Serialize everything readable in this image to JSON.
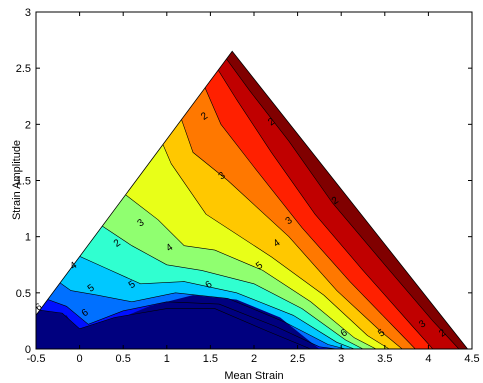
{
  "chart_data": {
    "type": "contour",
    "xlabel": "Mean Strain",
    "ylabel": "Strain Amplitude",
    "xlim": [
      -0.5,
      4.5
    ],
    "ylim": [
      0,
      3
    ],
    "x_ticks": [
      "-0.5",
      "0",
      "0.5",
      "1",
      "1.5",
      "2",
      "2.5",
      "3",
      "3.5",
      "4",
      "4.5"
    ],
    "y_ticks": [
      "0",
      "0.5",
      "1",
      "1.5",
      "2",
      "2.5",
      "3"
    ],
    "domain": {
      "shape": "triangle",
      "apex": [
        1.75,
        2.65
      ],
      "left_base": [
        -0.5,
        0.3
      ],
      "left_low": [
        -0.5,
        0.0
      ],
      "right_base": [
        4.45,
        0.0
      ]
    },
    "colormap": [
      "#00007f",
      "#0010ff",
      "#0070ff",
      "#00c8ff",
      "#30ffd0",
      "#90ff70",
      "#e8ff18",
      "#ffc800",
      "#ff7800",
      "#ff2000",
      "#c00000",
      "#800000"
    ],
    "contours": [
      {
        "level": 12,
        "value": "",
        "points": [
          [
            1.62,
            2.65
          ],
          [
            1.95,
            2.3
          ],
          [
            2.4,
            1.85
          ],
          [
            2.9,
            1.3
          ],
          [
            3.5,
            0.75
          ],
          [
            4.05,
            0.25
          ],
          [
            4.35,
            0.0
          ]
        ]
      },
      {
        "level": 11,
        "value": "2",
        "points": [
          [
            1.52,
            2.57
          ],
          [
            1.8,
            2.22
          ],
          [
            2.2,
            1.75
          ],
          [
            2.7,
            1.2
          ],
          [
            3.25,
            0.7
          ],
          [
            3.82,
            0.2
          ],
          [
            4.05,
            0.0
          ]
        ]
      },
      {
        "level": 10,
        "value": "",
        "points": [
          [
            1.38,
            2.43
          ],
          [
            1.62,
            2.0
          ],
          [
            2.0,
            1.62
          ],
          [
            2.55,
            1.08
          ],
          [
            3.1,
            0.6
          ],
          [
            3.6,
            0.2
          ],
          [
            3.85,
            0.0
          ]
        ]
      },
      {
        "level": 9,
        "value": "3",
        "points": [
          [
            1.12,
            2.15
          ],
          [
            1.3,
            1.75
          ],
          [
            1.7,
            1.5
          ],
          [
            2.4,
            1.0
          ],
          [
            2.95,
            0.52
          ],
          [
            3.45,
            0.16
          ],
          [
            3.7,
            0.0
          ]
        ]
      },
      {
        "level": 8,
        "value": "2",
        "points": [
          [
            0.9,
            1.92
          ],
          [
            1.05,
            1.65
          ],
          [
            1.45,
            1.2
          ],
          [
            2.2,
            0.82
          ],
          [
            2.8,
            0.48
          ],
          [
            3.3,
            0.12
          ],
          [
            3.55,
            0.0
          ]
        ]
      },
      {
        "level": 7,
        "value": "3",
        "points": [
          [
            0.45,
            1.42
          ],
          [
            0.9,
            1.15
          ],
          [
            1.2,
            0.92
          ],
          [
            1.55,
            0.88
          ],
          [
            2.1,
            0.7
          ],
          [
            2.65,
            0.42
          ],
          [
            3.15,
            0.1
          ],
          [
            3.4,
            0.0
          ]
        ]
      },
      {
        "level": 6,
        "value": "2",
        "points": [
          [
            0.15,
            1.15
          ],
          [
            0.6,
            0.92
          ],
          [
            1.0,
            0.75
          ],
          [
            1.4,
            0.7
          ],
          [
            2.0,
            0.58
          ],
          [
            2.55,
            0.36
          ],
          [
            3.05,
            0.08
          ],
          [
            3.25,
            0.0
          ]
        ]
      },
      {
        "level": 5,
        "value": "4",
        "points": [
          [
            -0.1,
            0.86
          ],
          [
            0.3,
            0.72
          ],
          [
            0.7,
            0.58
          ],
          [
            1.2,
            0.6
          ],
          [
            1.8,
            0.5
          ],
          [
            2.45,
            0.3
          ],
          [
            2.95,
            0.06
          ],
          [
            3.15,
            0.0
          ]
        ]
      },
      {
        "level": 4,
        "value": "5",
        "points": [
          [
            -0.28,
            0.62
          ],
          [
            -0.1,
            0.52
          ],
          [
            0.2,
            0.48
          ],
          [
            0.6,
            0.42
          ],
          [
            1.1,
            0.5
          ],
          [
            1.7,
            0.45
          ],
          [
            2.35,
            0.24
          ],
          [
            2.85,
            0.04
          ],
          [
            3.05,
            0.0
          ]
        ]
      },
      {
        "level": 3,
        "value": "6",
        "points": [
          [
            -0.4,
            0.45
          ],
          [
            -0.15,
            0.38
          ],
          [
            0.1,
            0.22
          ],
          [
            0.5,
            0.34
          ],
          [
            1.0,
            0.42
          ],
          [
            1.6,
            0.4
          ],
          [
            2.25,
            0.2
          ],
          [
            2.75,
            0.02
          ],
          [
            2.95,
            0.0
          ]
        ]
      },
      {
        "level": 2,
        "value": "",
        "points": [
          [
            -0.5,
            0.35
          ],
          [
            -0.2,
            0.32
          ],
          [
            0.0,
            0.18
          ],
          [
            0.4,
            0.28
          ],
          [
            1.0,
            0.36
          ],
          [
            1.55,
            0.36
          ],
          [
            2.15,
            0.16
          ],
          [
            2.65,
            0.0
          ]
        ]
      }
    ],
    "labels": [
      {
        "text": "2",
        "x": 1.45,
        "y": 2.05
      },
      {
        "text": "3",
        "x": 1.65,
        "y": 1.52
      },
      {
        "text": "3",
        "x": 0.72,
        "y": 1.1
      },
      {
        "text": "2",
        "x": 0.45,
        "y": 0.92
      },
      {
        "text": "4",
        "x": -0.05,
        "y": 0.72
      },
      {
        "text": "5",
        "x": 0.15,
        "y": 0.52
      },
      {
        "text": "6",
        "x": -0.45,
        "y": 0.35
      },
      {
        "text": "6",
        "x": 0.08,
        "y": 0.3
      },
      {
        "text": "4",
        "x": 1.05,
        "y": 0.88
      },
      {
        "text": "5",
        "x": 0.62,
        "y": 0.55
      },
      {
        "text": "6",
        "x": 1.5,
        "y": 0.55
      },
      {
        "text": "5",
        "x": 2.08,
        "y": 0.72
      },
      {
        "text": "4",
        "x": 2.28,
        "y": 0.92
      },
      {
        "text": "3",
        "x": 2.42,
        "y": 1.12
      },
      {
        "text": "2",
        "x": 2.95,
        "y": 1.3
      },
      {
        "text": "2",
        "x": 2.22,
        "y": 2.0
      },
      {
        "text": "6",
        "x": 3.05,
        "y": 0.12
      },
      {
        "text": "5",
        "x": 3.48,
        "y": 0.12
      },
      {
        "text": "3",
        "x": 3.95,
        "y": 0.2
      },
      {
        "text": "2",
        "x": 4.18,
        "y": 0.12
      }
    ]
  }
}
